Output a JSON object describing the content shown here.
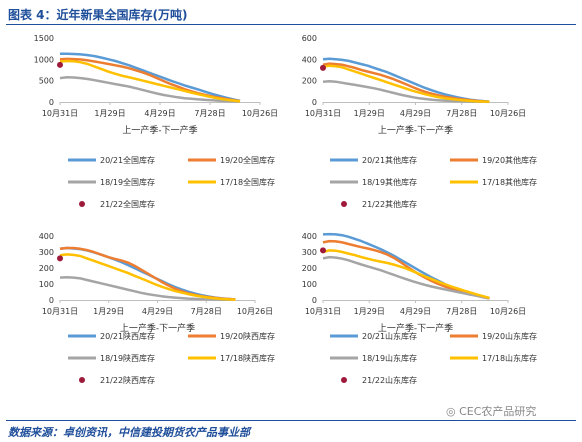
{
  "header": {
    "title": "图表 4：近年新果全国库存(万吨)"
  },
  "footer": {
    "source": "数据来源：卓创资讯，中信建投期货农产品事业部",
    "watermark": "CEC农产品研究"
  },
  "chart_data": [
    {
      "type": "line",
      "xlabel": "上一产季-下一产季",
      "ylim": [
        0,
        1500
      ],
      "yticks": [
        0,
        500,
        1000,
        1500
      ],
      "xticks": [
        "10月31日",
        "1月29日",
        "4月29日",
        "7月28日",
        "10月26日"
      ],
      "legend": "bottom",
      "series": [
        {
          "name": "20/21全国库存",
          "color": "#5b9bd5",
          "values": [
            1130,
            1130,
            1125,
            1115,
            1100,
            1075,
            1040,
            1000,
            960,
            910,
            860,
            800,
            740,
            680,
            620,
            560,
            500,
            445,
            390,
            340,
            290,
            240,
            190,
            145,
            100,
            60,
            25
          ]
        },
        {
          "name": "19/20全国库存",
          "color": "#ed7d31",
          "values": [
            1000,
            1010,
            1005,
            995,
            975,
            950,
            920,
            890,
            860,
            830,
            790,
            740,
            690,
            630,
            560,
            490,
            420,
            360,
            300,
            250,
            205,
            165,
            130,
            100,
            70,
            45,
            20
          ]
        },
        {
          "name": "18/19全国库存",
          "color": "#a5a5a5",
          "values": [
            560,
            580,
            575,
            560,
            540,
            510,
            480,
            450,
            420,
            390,
            360,
            320,
            280,
            240,
            200,
            165,
            135,
            110,
            90,
            75,
            62,
            50,
            40,
            30,
            22,
            15,
            10
          ]
        },
        {
          "name": "17/18全国库存",
          "color": "#ffc000",
          "values": [
            950,
            960,
            955,
            930,
            890,
            830,
            770,
            710,
            660,
            615,
            580,
            540,
            500,
            460,
            420,
            380,
            340,
            300,
            260,
            220,
            180,
            145,
            110,
            80,
            55,
            35,
            15
          ]
        },
        {
          "name": "21/22全国库存",
          "color": "#9e1a3a",
          "values": [
            870
          ]
        }
      ]
    },
    {
      "type": "line",
      "xlabel": "上一产季-下一产季",
      "ylim": [
        0,
        600
      ],
      "yticks": [
        0,
        200,
        400,
        600
      ],
      "xticks": [
        "10月31日",
        "1月29日",
        "4月29日",
        "7月28日",
        "10月26日"
      ],
      "legend": "bottom",
      "series": [
        {
          "name": "20/21其他库存",
          "color": "#5b9bd5",
          "values": [
            400,
            405,
            400,
            395,
            385,
            370,
            355,
            340,
            320,
            300,
            280,
            255,
            230,
            205,
            180,
            155,
            130,
            110,
            90,
            72,
            57,
            44,
            32,
            22,
            14,
            8,
            4
          ]
        },
        {
          "name": "19/20其他库存",
          "color": "#ed7d31",
          "values": [
            350,
            360,
            355,
            350,
            335,
            320,
            300,
            285,
            270,
            255,
            235,
            215,
            190,
            165,
            140,
            115,
            95,
            78,
            63,
            50,
            40,
            31,
            23,
            16,
            10,
            6,
            3
          ]
        },
        {
          "name": "18/19其他库存",
          "color": "#a5a5a5",
          "values": [
            190,
            195,
            190,
            180,
            170,
            160,
            150,
            140,
            128,
            115,
            100,
            85,
            70,
            57,
            45,
            35,
            28,
            22,
            17,
            13,
            10,
            7,
            5,
            4,
            3,
            2,
            1
          ]
        },
        {
          "name": "17/18其他库存",
          "color": "#ffc000",
          "values": [
            330,
            340,
            335,
            325,
            305,
            285,
            265,
            245,
            225,
            205,
            185,
            165,
            145,
            125,
            105,
            88,
            72,
            58,
            46,
            36,
            28,
            21,
            15,
            10,
            6,
            4,
            2
          ]
        },
        {
          "name": "21/22其他库存",
          "color": "#9e1a3a",
          "values": [
            320
          ]
        }
      ]
    },
    {
      "type": "line",
      "xlabel": "上一产季-下一产季",
      "ylim": [
        0,
        400
      ],
      "yticks": [
        0,
        100,
        200,
        300,
        400
      ],
      "xticks": [
        "10月31日",
        "1月29日",
        "4月29日",
        "7月28日",
        "10月26日"
      ],
      "legend": "bottom",
      "series": [
        {
          "name": "20/21陕西库存",
          "color": "#5b9bd5",
          "values": [
            320,
            325,
            322,
            318,
            310,
            298,
            285,
            270,
            255,
            238,
            220,
            200,
            180,
            160,
            140,
            120,
            100,
            82,
            66,
            52,
            40,
            30,
            22,
            15,
            10,
            6,
            3
          ]
        },
        {
          "name": "19/20陕西库存",
          "color": "#ed7d31",
          "values": [
            320,
            325,
            325,
            320,
            312,
            300,
            285,
            270,
            258,
            248,
            235,
            215,
            190,
            165,
            140,
            115,
            92,
            72,
            55,
            42,
            32,
            24,
            18,
            13,
            9,
            6,
            3
          ]
        },
        {
          "name": "18/19陕西库存",
          "color": "#a5a5a5",
          "values": [
            140,
            142,
            140,
            135,
            125,
            115,
            105,
            95,
            85,
            75,
            65,
            55,
            45,
            37,
            30,
            24,
            19,
            15,
            12,
            9,
            7,
            5,
            4,
            3,
            2,
            1,
            1
          ]
        },
        {
          "name": "17/18陕西库存",
          "color": "#ffc000",
          "values": [
            280,
            285,
            282,
            275,
            260,
            245,
            230,
            215,
            200,
            185,
            170,
            152,
            135,
            118,
            100,
            84,
            70,
            57,
            46,
            36,
            28,
            21,
            15,
            10,
            6,
            4,
            2
          ]
        },
        {
          "name": "21/22陕西库存",
          "color": "#9e1a3a",
          "values": [
            260
          ]
        }
      ]
    },
    {
      "type": "line",
      "xlabel": "上一产季-下一产季",
      "ylim": [
        0,
        400
      ],
      "yticks": [
        0,
        100,
        200,
        300,
        400
      ],
      "xticks": [
        "10月31日",
        "1月29日",
        "4月29日",
        "7月28日",
        "10月26日"
      ],
      "legend": "bottom",
      "series": [
        {
          "name": "20/21山东库存",
          "color": "#5b9bd5",
          "values": [
            410,
            412,
            410,
            405,
            395,
            382,
            368,
            352,
            335,
            318,
            298,
            278,
            255,
            232,
            208,
            185,
            162,
            140,
            120,
            100,
            82,
            66,
            52,
            40,
            28,
            18,
            10
          ]
        },
        {
          "name": "19/20山东库存",
          "color": "#ed7d31",
          "values": [
            360,
            368,
            366,
            360,
            350,
            340,
            330,
            322,
            312,
            300,
            285,
            265,
            240,
            212,
            185,
            160,
            138,
            118,
            100,
            85,
            72,
            60,
            48,
            37,
            27,
            18,
            10
          ]
        },
        {
          "name": "18/19山东库存",
          "color": "#a5a5a5",
          "values": [
            260,
            268,
            265,
            258,
            248,
            235,
            222,
            210,
            198,
            186,
            172,
            158,
            144,
            130,
            117,
            105,
            94,
            84,
            75,
            66,
            58,
            50,
            42,
            34,
            26,
            18,
            10
          ]
        },
        {
          "name": "17/18山东库存",
          "color": "#ffc000",
          "values": [
            300,
            310,
            308,
            300,
            290,
            280,
            268,
            258,
            248,
            240,
            232,
            222,
            210,
            196,
            180,
            163,
            146,
            130,
            114,
            99,
            85,
            72,
            59,
            47,
            35,
            24,
            13
          ]
        },
        {
          "name": "21/22山东库存",
          "color": "#9e1a3a",
          "values": [
            310
          ]
        }
      ]
    }
  ]
}
